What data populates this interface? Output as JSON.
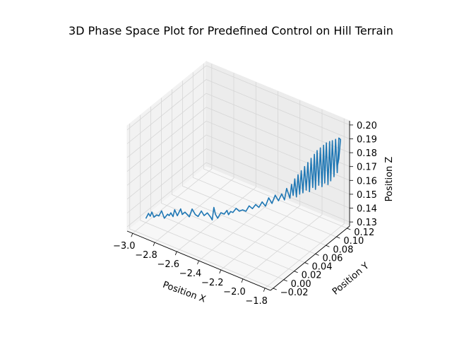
{
  "chart_data": {
    "type": "line3d",
    "title": "3D Phase Space Plot for Predefined Control on Hill Terrain",
    "xlabel": "Position X",
    "ylabel": "Position Y",
    "zlabel": "Position Z",
    "xlim": [
      -3.05,
      -1.75
    ],
    "ylim": [
      -0.025,
      0.125
    ],
    "zlim": [
      0.127,
      0.203
    ],
    "x_ticks": [
      -3.0,
      -2.8,
      -2.6,
      -2.4,
      -2.2,
      -2.0,
      -1.8
    ],
    "x_tick_labels": [
      "−3.0",
      "−2.8",
      "−2.6",
      "−2.4",
      "−2.2",
      "−2.0",
      "−1.8"
    ],
    "y_ticks": [
      -0.02,
      0.0,
      0.02,
      0.04,
      0.06,
      0.08,
      0.1,
      0.12
    ],
    "y_tick_labels": [
      "−0.02",
      "0.00",
      "0.02",
      "0.04",
      "0.06",
      "0.08",
      "0.10",
      "0.12"
    ],
    "z_ticks": [
      0.13,
      0.14,
      0.15,
      0.16,
      0.17,
      0.18,
      0.19,
      0.2
    ],
    "z_tick_labels": [
      "0.13",
      "0.14",
      "0.15",
      "0.16",
      "0.17",
      "0.18",
      "0.19",
      "0.20"
    ],
    "grid": true,
    "line_color": "#1f77b4",
    "series": [
      {
        "x": [
          -3.0,
          -2.98,
          -2.97,
          -2.96,
          -2.95,
          -2.93,
          -2.92,
          -2.9,
          -2.88,
          -2.86,
          -2.85,
          -2.84,
          -2.83,
          -2.82,
          -2.8,
          -2.78,
          -2.77,
          -2.75,
          -2.72,
          -2.7,
          -2.68,
          -2.66,
          -2.64,
          -2.62,
          -2.6,
          -2.58,
          -2.57,
          -2.56,
          -2.55,
          -2.54,
          -2.52,
          -2.5,
          -2.48,
          -2.47,
          -2.46,
          -2.45,
          -2.43,
          -2.41,
          -2.39,
          -2.37,
          -2.35,
          -2.33,
          -2.31,
          -2.29,
          -2.27,
          -2.25,
          -2.23,
          -2.21,
          -2.19,
          -2.17,
          -2.15,
          -2.13,
          -2.12,
          -2.1,
          -2.09,
          -2.08,
          -2.07,
          -2.06,
          -2.05,
          -2.04,
          -2.03,
          -2.02,
          -2.01,
          -2.0,
          -1.99,
          -1.98,
          -1.97,
          -1.96,
          -1.95,
          -1.94,
          -1.93,
          -1.92,
          -1.91,
          -1.9,
          -1.89,
          -1.88,
          -1.87,
          -1.86,
          -1.85,
          -1.84,
          -1.83,
          -1.82,
          -1.81,
          -1.8,
          -1.79,
          -1.78,
          -1.79,
          -1.8
        ],
        "y": [
          0.0,
          0.001,
          0.002,
          0.003,
          0.005,
          0.006,
          0.008,
          0.009,
          0.01,
          0.012,
          0.013,
          0.014,
          0.016,
          0.017,
          0.018,
          0.02,
          0.021,
          0.022,
          0.024,
          0.025,
          0.027,
          0.028,
          0.03,
          0.031,
          0.033,
          0.035,
          0.036,
          0.037,
          0.038,
          0.04,
          0.042,
          0.044,
          0.045,
          0.046,
          0.048,
          0.05,
          0.052,
          0.054,
          0.056,
          0.058,
          0.06,
          0.062,
          0.064,
          0.066,
          0.068,
          0.07,
          0.072,
          0.074,
          0.076,
          0.078,
          0.08,
          0.081,
          0.083,
          0.085,
          0.086,
          0.087,
          0.088,
          0.089,
          0.09,
          0.091,
          0.092,
          0.093,
          0.094,
          0.095,
          0.096,
          0.097,
          0.098,
          0.099,
          0.1,
          0.1,
          0.101,
          0.102,
          0.103,
          0.104,
          0.105,
          0.105,
          0.106,
          0.107,
          0.108,
          0.108,
          0.109,
          0.11,
          0.111,
          0.112,
          0.113,
          0.114,
          0.113,
          0.112
        ],
        "z": [
          0.13,
          0.134,
          0.132,
          0.135,
          0.131,
          0.133,
          0.132,
          0.136,
          0.131,
          0.134,
          0.133,
          0.135,
          0.132,
          0.137,
          0.133,
          0.138,
          0.134,
          0.136,
          0.133,
          0.139,
          0.135,
          0.134,
          0.138,
          0.135,
          0.137,
          0.134,
          0.132,
          0.141,
          0.136,
          0.133,
          0.137,
          0.136,
          0.139,
          0.136,
          0.138,
          0.137,
          0.14,
          0.138,
          0.139,
          0.138,
          0.142,
          0.14,
          0.143,
          0.141,
          0.145,
          0.142,
          0.148,
          0.144,
          0.15,
          0.146,
          0.151,
          0.147,
          0.155,
          0.148,
          0.158,
          0.15,
          0.162,
          0.149,
          0.165,
          0.151,
          0.168,
          0.152,
          0.171,
          0.154,
          0.174,
          0.153,
          0.177,
          0.156,
          0.18,
          0.155,
          0.183,
          0.158,
          0.185,
          0.157,
          0.187,
          0.16,
          0.189,
          0.159,
          0.19,
          0.162,
          0.191,
          0.165,
          0.192,
          0.168,
          0.193,
          0.192,
          0.178,
          0.172
        ]
      }
    ]
  }
}
